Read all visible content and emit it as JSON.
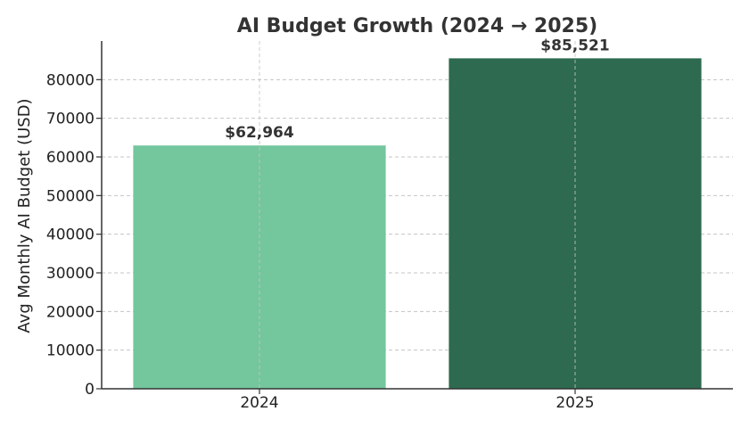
{
  "chart_data": {
    "type": "bar",
    "title": "AI Budget Growth (2024 → 2025)",
    "xlabel": "",
    "ylabel": "Avg Monthly AI Budget (USD)",
    "categories": [
      "2024",
      "2025"
    ],
    "values": [
      62964,
      85521
    ],
    "data_labels": [
      "$62,964",
      "$85,521"
    ],
    "colors": [
      "#74c69d",
      "#2d6a4f"
    ],
    "ylim": [
      0,
      90000
    ],
    "yticks": [
      0,
      10000,
      20000,
      30000,
      40000,
      50000,
      60000,
      70000,
      80000
    ],
    "grid": true,
    "legend": "none"
  }
}
